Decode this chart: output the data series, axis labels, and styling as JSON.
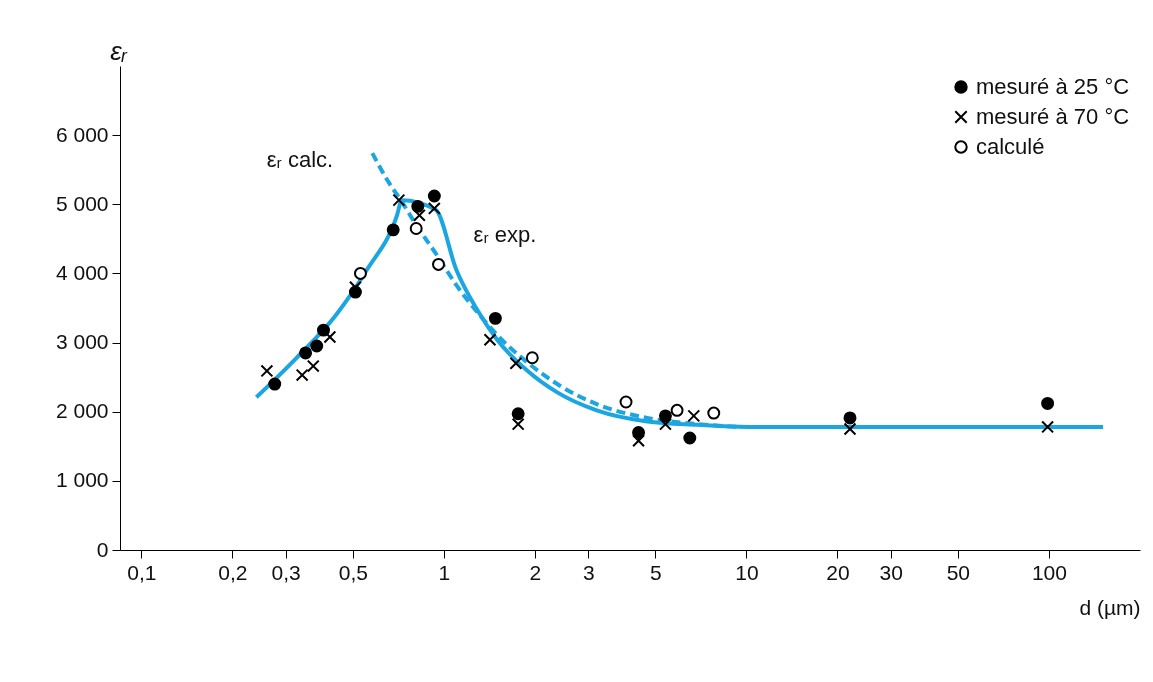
{
  "chart_data": {
    "type": "scatter",
    "xlabel": "d (µm)",
    "ylabel": "εᵣ",
    "log": "x",
    "grid": false,
    "legend": "top right",
    "xlim": [
      0.085,
      200
    ],
    "ylim": [
      0,
      7000
    ],
    "xticks": [
      {
        "value": 0.1,
        "label": "0,1"
      },
      {
        "value": 0.2,
        "label": "0,2"
      },
      {
        "value": 0.3,
        "label": "0,3"
      },
      {
        "value": 0.5,
        "label": "0,5"
      },
      1,
      2,
      3,
      5,
      10,
      20,
      30,
      50,
      100
    ],
    "yticks": [
      0,
      {
        "value": 1000,
        "label": "1 000"
      },
      {
        "value": 2000,
        "label": "2 000"
      },
      {
        "value": 3000,
        "label": "3 000"
      },
      {
        "value": 4000,
        "label": "4 000"
      },
      {
        "value": 5000,
        "label": "5 000"
      },
      {
        "value": 6000,
        "label": "6 000"
      }
    ],
    "series": [
      {
        "name": "mesuré à 25 °C",
        "marker": "circle",
        "color": "#000000",
        "x": [
          0.276,
          0.349,
          0.38,
          0.4,
          0.51,
          0.68,
          0.82,
          0.93,
          1.48,
          1.76,
          4.4,
          5.4,
          6.5,
          22,
          99
        ],
        "values": [
          2400,
          2850,
          2950,
          3180,
          3730,
          4630,
          4970,
          5120,
          3350,
          1970,
          1700,
          1940,
          1620,
          1910,
          2120
        ]
      },
      {
        "name": "mesuré à 70 °C",
        "marker": "cross",
        "color": "#000000",
        "x": [
          0.26,
          0.34,
          0.37,
          0.42,
          0.51,
          0.71,
          0.83,
          0.93,
          1.42,
          1.73,
          1.76,
          4.4,
          5.4,
          6.7,
          22,
          99
        ],
        "values": [
          2590,
          2530,
          2660,
          3080,
          3800,
          5060,
          4840,
          4940,
          3040,
          2700,
          1820,
          1580,
          1820,
          1940,
          1750,
          1780
        ]
      },
      {
        "name": "calculé",
        "marker": "circle",
        "color": "#ffffff",
        "x": [
          0.53,
          0.81,
          0.96,
          1.96,
          4.0,
          5.9,
          7.8
        ],
        "values": [
          4000,
          4650,
          4130,
          2780,
          2140,
          2020,
          1980
        ]
      },
      {
        "type": "line",
        "marker": "none",
        "line_style": "solid",
        "color": "#1ba6e2",
        "x": [
          0.24,
          0.326,
          0.44,
          0.556,
          0.7,
          0.726,
          0.94,
          1.1,
          1.29,
          1.5,
          1.88,
          2.37,
          3.2,
          4.7,
          6.9,
          10.1,
          21.6,
          67,
          151
        ],
        "values": [
          2210,
          2780,
          3400,
          4050,
          4840,
          5060,
          4920,
          4050,
          3470,
          3040,
          2600,
          2280,
          2020,
          1860,
          1810,
          1780,
          1780,
          1780,
          1780
        ]
      },
      {
        "type": "line",
        "marker": "none",
        "line_style": "dashed",
        "color": "#1ba6e2",
        "x": [
          0.58,
          0.65,
          0.73,
          0.81,
          0.95,
          1.1,
          1.29,
          1.5,
          1.88,
          2.37,
          3.2,
          4.7,
          6.9,
          9.7
        ],
        "values": [
          5740,
          5350,
          5020,
          4700,
          4260,
          3830,
          3440,
          3110,
          2720,
          2400,
          2110,
          1910,
          1820,
          1780
        ]
      }
    ],
    "annotations": [
      "εᵣ calc.",
      "εᵣ exp."
    ]
  }
}
